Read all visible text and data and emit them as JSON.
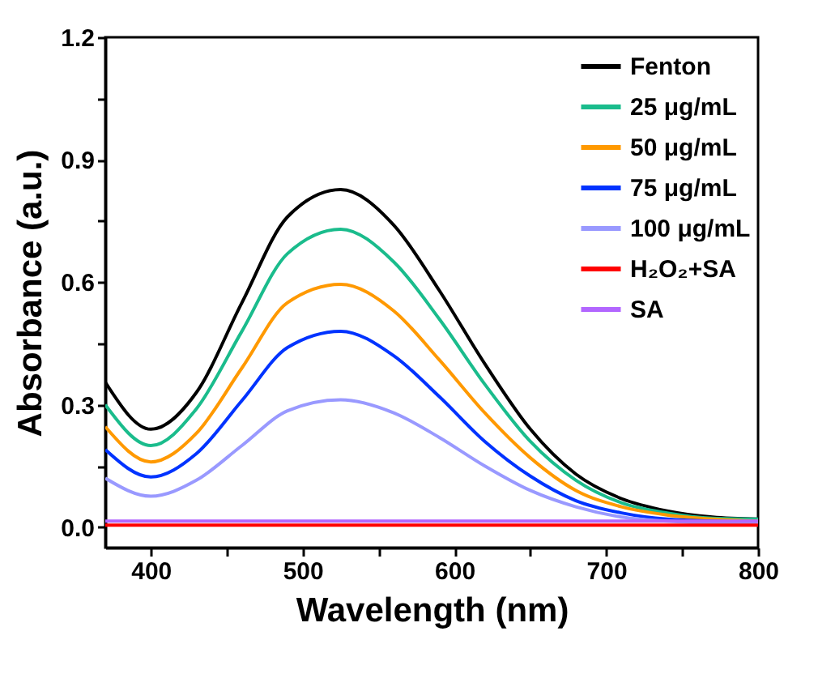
{
  "chart_data": {
    "type": "line",
    "xlabel": "Wavelength (nm)",
    "ylabel": "Absorbance (a.u.)",
    "x": [
      370,
      400,
      430,
      460,
      490,
      525,
      560,
      590,
      620,
      650,
      680,
      710,
      740,
      770,
      800
    ],
    "xlim": [
      370,
      800
    ],
    "xticks": [
      400,
      {
        "value": 450,
        "label": null
      },
      500,
      {
        "value": 550,
        "label": null
      },
      600,
      {
        "value": 650,
        "label": null
      },
      700,
      {
        "value": 750,
        "label": null
      },
      800
    ],
    "ylim": [
      -0.05,
      1.2
    ],
    "yticks": [
      {
        "value": 0,
        "label": "0.0"
      },
      {
        "value": 0.15,
        "label": null
      },
      0.3,
      {
        "value": 0.45,
        "label": null
      },
      0.6,
      {
        "value": 0.75,
        "label": null
      },
      0.9,
      {
        "value": 1.05,
        "label": null
      },
      1.2
    ],
    "legend": "top right",
    "series": [
      {
        "name": "Fenton",
        "color": "#000000",
        "values": [
          0.355,
          0.24,
          0.33,
          0.55,
          0.76,
          0.827,
          0.74,
          0.58,
          0.4,
          0.24,
          0.13,
          0.07,
          0.04,
          0.025,
          0.02
        ]
      },
      {
        "name": "25 μg/mL",
        "color": "#1abc8c",
        "values": [
          0.3,
          0.2,
          0.29,
          0.48,
          0.67,
          0.73,
          0.65,
          0.51,
          0.35,
          0.21,
          0.115,
          0.06,
          0.035,
          0.022,
          0.02
        ]
      },
      {
        "name": "50 μg/mL",
        "color": "#ff9900",
        "values": [
          0.246,
          0.16,
          0.23,
          0.39,
          0.55,
          0.595,
          0.53,
          0.41,
          0.28,
          0.17,
          0.09,
          0.05,
          0.03,
          0.02,
          0.015
        ]
      },
      {
        "name": "75 μg/mL",
        "color": "#0033ff",
        "values": [
          0.19,
          0.123,
          0.18,
          0.31,
          0.44,
          0.48,
          0.42,
          0.32,
          0.21,
          0.125,
          0.065,
          0.035,
          0.02,
          null,
          0.012
        ]
      },
      {
        "name": "100 μg/mL",
        "color": "#9999ff",
        "values": [
          0.12,
          0.076,
          0.115,
          0.2,
          0.285,
          0.312,
          0.28,
          0.22,
          0.15,
          0.09,
          0.05,
          0.025,
          0.015,
          0.01,
          0.01
        ]
      },
      {
        "name": "H₂O₂+SA",
        "color": "#ff0000",
        "values": [
          0.005,
          0.005,
          0.005,
          0.005,
          0.005,
          0.005,
          0.005,
          0.005,
          0.005,
          0.005,
          0.005,
          0.005,
          0.005,
          0.005,
          0.005
        ]
      },
      {
        "name": "SA",
        "color": "#b266ff",
        "values": [
          0.015,
          0.015,
          0.015,
          0.015,
          0.015,
          0.015,
          0.015,
          0.015,
          0.015,
          0.015,
          0.015,
          0.015,
          0.015,
          0.015,
          0.015
        ]
      }
    ]
  }
}
